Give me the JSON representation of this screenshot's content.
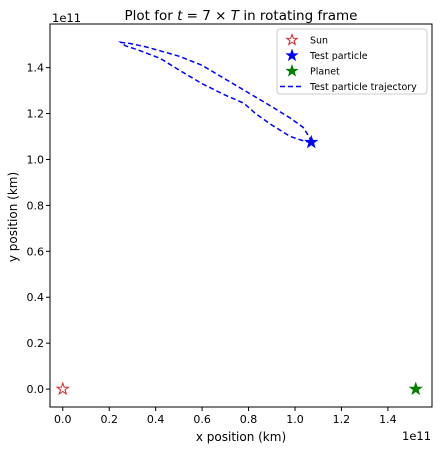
{
  "chart_data": {
    "type": "scatter",
    "title": "Plot for t = 7 × T in rotating frame",
    "title_parts": {
      "prefix": "Plot for ",
      "t": "t",
      "equals": " = 7 × ",
      "T": "T",
      "suffix": " in rotating frame"
    },
    "xlabel": "x position (km)",
    "ylabel": "y position (km)",
    "x_offset_text": "1e11",
    "y_offset_text": "1e11",
    "xlim": [
      -5500000000.0,
      159000000000.0
    ],
    "ylim": [
      -7800000000.0,
      159000000000.0
    ],
    "x_ticks": [
      0,
      20000000000.0,
      40000000000.0,
      60000000000.0,
      80000000000.0,
      100000000000.0,
      120000000000.0,
      140000000000.0
    ],
    "x_tick_labels": [
      "0.0",
      "0.2",
      "0.4",
      "0.6",
      "0.8",
      "1.0",
      "1.2",
      "1.4"
    ],
    "y_ticks": [
      0,
      20000000000.0,
      40000000000.0,
      60000000000.0,
      80000000000.0,
      100000000000.0,
      120000000000.0,
      140000000000.0
    ],
    "y_tick_labels": [
      "0.0",
      "0.2",
      "0.4",
      "0.6",
      "0.8",
      "1.0",
      "1.2",
      "1.4"
    ],
    "grid": false,
    "legend_position": "top-right",
    "series": [
      {
        "name": "Sun",
        "marker": "star-outline",
        "color": "#d62728",
        "points": [
          [
            0,
            0
          ]
        ]
      },
      {
        "name": "Test particle",
        "marker": "star-filled",
        "color": "#0000ff",
        "points": [
          [
            107000000000.0,
            107500000000.0
          ]
        ]
      },
      {
        "name": "Planet",
        "marker": "star-filled",
        "color": "#008000",
        "points": [
          [
            152000000000.0,
            0
          ]
        ]
      },
      {
        "name": "Test particle trajectory",
        "line_style": "dashed",
        "color": "#0000ff",
        "points": [
          [
            107000000000.0,
            107500000000.0
          ],
          [
            106000000000.0,
            110000000000.0
          ],
          [
            103500000000.0,
            114000000000.0
          ],
          [
            98000000000.0,
            118000000000.0
          ],
          [
            90000000000.0,
            123000000000.0
          ],
          [
            80000000000.0,
            129000000000.0
          ],
          [
            70000000000.0,
            135000000000.0
          ],
          [
            60000000000.0,
            141000000000.0
          ],
          [
            50000000000.0,
            145000000000.0
          ],
          [
            43000000000.0,
            147000000000.0
          ],
          [
            36000000000.0,
            149000000000.0
          ],
          [
            29000000000.0,
            150500000000.0
          ],
          [
            25000000000.0,
            151000000000.0
          ],
          [
            27000000000.0,
            149500000000.0
          ],
          [
            33000000000.0,
            147500000000.0
          ],
          [
            42000000000.0,
            144000000000.0
          ],
          [
            50000000000.0,
            139000000000.0
          ],
          [
            60000000000.0,
            133000000000.0
          ],
          [
            70000000000.0,
            128000000000.0
          ],
          [
            78000000000.0,
            124500000000.0
          ],
          [
            83000000000.0,
            120000000000.0
          ],
          [
            90000000000.0,
            115000000000.0
          ],
          [
            98000000000.0,
            110000000000.0
          ],
          [
            104000000000.0,
            108000000000.0
          ],
          [
            107000000000.0,
            107500000000.0
          ]
        ]
      }
    ]
  }
}
